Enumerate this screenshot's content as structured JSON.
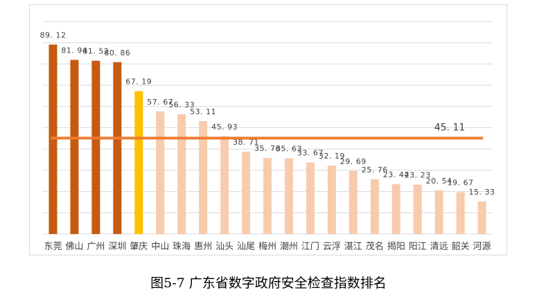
{
  "caption": "图5-7  广东省数字政府安全检查指数排名",
  "chart_data": {
    "type": "bar",
    "title": "",
    "xlabel": "",
    "ylabel": "",
    "ylim": [
      0,
      100
    ],
    "grid": true,
    "categories": [
      "东莞",
      "佛山",
      "广州",
      "深圳",
      "肇庆",
      "中山",
      "珠海",
      "惠州",
      "汕头",
      "汕尾",
      "梅州",
      "潮州",
      "江门",
      "云浮",
      "湛江",
      "茂名",
      "揭阳",
      "阳江",
      "清远",
      "韶关",
      "河源"
    ],
    "values": [
      89.12,
      81.94,
      81.52,
      80.86,
      67.19,
      57.67,
      56.33,
      53.11,
      45.93,
      38.71,
      35.76,
      35.63,
      33.67,
      32.19,
      29.69,
      25.76,
      23.44,
      23.23,
      20.54,
      19.67,
      15.33
    ],
    "value_labels": [
      "89. 12",
      "81. 94",
      "81. 52",
      "80. 86",
      "67. 19",
      "57. 67",
      "56. 33",
      "53. 11",
      "45. 93",
      "38. 71",
      "35. 76",
      "35. 63",
      "33. 67",
      "32. 19",
      "29. 69",
      "25. 76",
      "23. 44",
      "23. 23",
      "20. 54",
      "19. 67",
      "15. 33"
    ],
    "reference_line": {
      "value": 45.11,
      "label": "45. 11",
      "color": "#ED7D31"
    },
    "colors": {
      "top": "#C55A11",
      "highlight": "#FFC000",
      "rest": "#F8CBAD",
      "grid": "#d9d9d9"
    },
    "color_groups": [
      "top",
      "top",
      "top",
      "top",
      "highlight",
      "rest",
      "rest",
      "rest",
      "rest",
      "rest",
      "rest",
      "rest",
      "rest",
      "rest",
      "rest",
      "rest",
      "rest",
      "rest",
      "rest",
      "rest",
      "rest"
    ]
  }
}
